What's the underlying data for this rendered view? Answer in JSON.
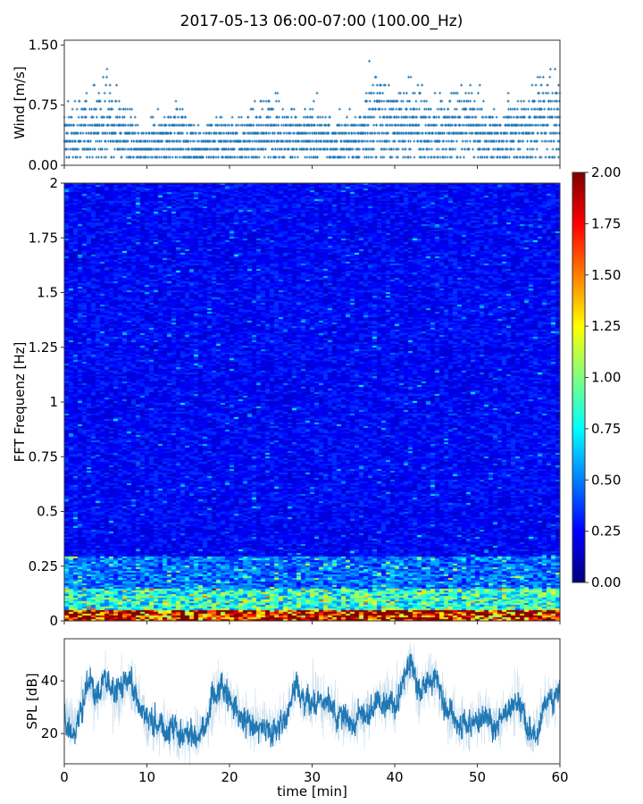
{
  "title": "2017-05-13 06:00-07:00 (100.00_Hz)",
  "colors": {
    "series": "#1f77b4",
    "axis": "#333333"
  },
  "chart_data": [
    {
      "type": "scatter",
      "name": "wind",
      "ylabel": "Wind [m/s]",
      "ylim": [
        0,
        1.56
      ],
      "xlim": [
        0,
        60
      ],
      "yticks": [
        "0.00",
        "0.75",
        "1.50"
      ],
      "ytick_values": [
        0,
        0.75,
        1.5
      ],
      "marker": "+",
      "step": 0.1,
      "per_minute_level": [
        0.35,
        0.35,
        0.4,
        0.45,
        0.5,
        0.55,
        0.45,
        0.4,
        0.35,
        0.2,
        0.2,
        0.3,
        0.35,
        0.35,
        0.35,
        0.3,
        0.2,
        0.25,
        0.3,
        0.3,
        0.25,
        0.3,
        0.3,
        0.35,
        0.4,
        0.45,
        0.4,
        0.35,
        0.35,
        0.3,
        0.35,
        0.35,
        0.3,
        0.3,
        0.3,
        0.3,
        0.35,
        0.55,
        0.6,
        0.55,
        0.45,
        0.45,
        0.5,
        0.5,
        0.45,
        0.4,
        0.4,
        0.45,
        0.45,
        0.5,
        0.4,
        0.35,
        0.35,
        0.3,
        0.4,
        0.4,
        0.45,
        0.55,
        0.6,
        0.55,
        0.5
      ]
    },
    {
      "type": "heatmap",
      "name": "spectrogram",
      "ylabel": "FFT Frequenz [Hz]",
      "ylim": [
        0,
        2
      ],
      "xlim": [
        0,
        60
      ],
      "yticks": [
        "0",
        "0.25",
        "0.5",
        "0.75",
        "1",
        "1.25",
        "1.5",
        "1.75",
        "2"
      ],
      "ytick_values": [
        0,
        0.25,
        0.5,
        0.75,
        1,
        1.25,
        1.5,
        1.75,
        2
      ],
      "colormap": "jet",
      "clim": [
        0,
        2
      ],
      "colorbar_ticks": [
        "0.00",
        "0.25",
        "0.50",
        "0.75",
        "1.00",
        "1.25",
        "1.50",
        "1.75",
        "2.00"
      ],
      "colorbar_tick_values": [
        0,
        0.25,
        0.5,
        0.75,
        1,
        1.25,
        1.5,
        1.75,
        2
      ],
      "typical_level_by_band": [
        {
          "fmax": 0.05,
          "level": 1.7
        },
        {
          "fmax": 0.15,
          "level": 0.8
        },
        {
          "fmax": 0.3,
          "level": 0.45
        },
        {
          "fmax": 2.0,
          "level": 0.25
        }
      ]
    },
    {
      "type": "line",
      "name": "spl",
      "ylabel": "SPL [dB]",
      "xlabel": "time [min]",
      "ylim": [
        8.5,
        56
      ],
      "xlim": [
        0,
        60
      ],
      "yticks": [
        "20",
        "40"
      ],
      "ytick_values": [
        20,
        40
      ],
      "xticks": [
        "0",
        "10",
        "20",
        "30",
        "40",
        "50",
        "60"
      ],
      "xtick_values": [
        0,
        10,
        20,
        30,
        40,
        50,
        60
      ],
      "per_minute_level": [
        27,
        22,
        30,
        40,
        33,
        42,
        32,
        36,
        40,
        33,
        25,
        23,
        23,
        22,
        20,
        19,
        19,
        22,
        33,
        36,
        33,
        28,
        25,
        24,
        24,
        22,
        24,
        28,
        40,
        30,
        34,
        34,
        30,
        27,
        25,
        24,
        26,
        28,
        34,
        33,
        31,
        40,
        48,
        34,
        41,
        40,
        30,
        26,
        24,
        24,
        25,
        27,
        23,
        26,
        30,
        32,
        25,
        20,
        29,
        33,
        36
      ]
    }
  ]
}
